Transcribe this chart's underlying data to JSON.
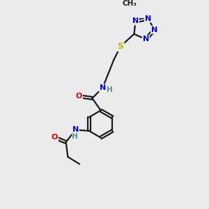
{
  "bg_color": "#ebebeb",
  "bond_color": "#1a1a1a",
  "atom_colors": {
    "N": "#0000ee",
    "O": "#dd0000",
    "S": "#bbbb00",
    "C": "#1a1a1a",
    "H": "#4a9090"
  },
  "font_size": 8.0,
  "linewidth": 1.6,
  "figsize": [
    3.0,
    3.0
  ],
  "dpi": 100
}
